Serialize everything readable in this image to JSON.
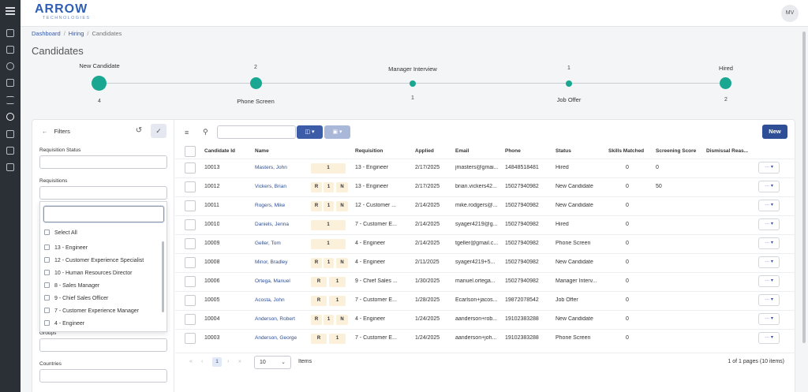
{
  "header": {
    "logo_main": "ARROW",
    "logo_sub": "TECHNOLOGIES",
    "avatar": "MV"
  },
  "breadcrumb": {
    "home": "Dashboard",
    "section": "Hiring",
    "current": "Candidates"
  },
  "page_title": "Candidates",
  "pipeline": {
    "stages": [
      {
        "label": "New Candidate",
        "count": "4"
      },
      {
        "label": "Phone Screen",
        "count": "2"
      },
      {
        "label": "Manager Interview",
        "count": "1"
      },
      {
        "label": "Job Offer",
        "count": "1"
      },
      {
        "label": "Hired",
        "count": "2"
      }
    ]
  },
  "filters": {
    "title": "Filters",
    "requisition_status_label": "Requisition Status",
    "requisitions_label": "Requisitions",
    "groups_label": "Groups",
    "countries_label": "Countries",
    "dropdown_items": [
      "Select All",
      "13 - Engineer",
      "12 - Customer Experience Specialist",
      "10 - Human Resources Director",
      "8 - Sales Manager",
      "9 - Chief Sales Officer",
      "7 - Customer Experience Manager",
      "4 - Engineer"
    ]
  },
  "toolbar": {
    "new_label": "New"
  },
  "table": {
    "columns": [
      "Candidate Id",
      "Name",
      "Requisition",
      "Applied",
      "Email",
      "Phone",
      "Status",
      "Skills Matched",
      "Screening Score",
      "Dismissal Reas..."
    ],
    "rows": [
      {
        "id": "10013",
        "name": "Masters, John",
        "badges": [
          "1"
        ],
        "req": "13 - Engineer",
        "applied": "2/17/2025",
        "email": "jmasters@gmai...",
        "phone": "14848518481",
        "status": "Hired",
        "skills": "0",
        "score": "0"
      },
      {
        "id": "10012",
        "name": "Vickers, Brian",
        "badges": [
          "R",
          "1",
          "N"
        ],
        "req": "13 - Engineer",
        "applied": "2/17/2025",
        "email": "brian.vickers42...",
        "phone": "15027940982",
        "status": "New Candidate",
        "skills": "0",
        "score": "50"
      },
      {
        "id": "10011",
        "name": "Rogers, Mike",
        "badges": [
          "R",
          "1",
          "N"
        ],
        "req": "12 - Customer ...",
        "applied": "2/14/2025",
        "email": "mike.rodgers@...",
        "phone": "15027940982",
        "status": "New Candidate",
        "skills": "0",
        "score": ""
      },
      {
        "id": "10010",
        "name": "Daniels, Jenna",
        "badges": [
          "1"
        ],
        "req": "7 - Customer E...",
        "applied": "2/14/2025",
        "email": "syager4219@g...",
        "phone": "15027940982",
        "status": "Hired",
        "skills": "0",
        "score": ""
      },
      {
        "id": "10009",
        "name": "Geller, Tom",
        "badges": [
          "1"
        ],
        "req": "4 - Engineer",
        "applied": "2/14/2025",
        "email": "tgeller@gmail.c...",
        "phone": "15027940982",
        "status": "Phone Screen",
        "skills": "0",
        "score": ""
      },
      {
        "id": "10008",
        "name": "Minor, Bradley",
        "badges": [
          "R",
          "1",
          "N"
        ],
        "req": "4 - Engineer",
        "applied": "2/11/2025",
        "email": "syager4219+5...",
        "phone": "15027940982",
        "status": "New Candidate",
        "skills": "0",
        "score": ""
      },
      {
        "id": "10006",
        "name": "Ortega, Manuel",
        "badges": [
          "R",
          "1"
        ],
        "req": "9 - Chief Sales ...",
        "applied": "1/30/2025",
        "email": "manuel.ortega...",
        "phone": "15027940982",
        "status": "Manager Interv...",
        "skills": "0",
        "score": ""
      },
      {
        "id": "10005",
        "name": "Acosta, John",
        "badges": [
          "R",
          "1"
        ],
        "req": "7 - Customer E...",
        "applied": "1/28/2025",
        "email": "Ecarlson+jacos...",
        "phone": "19872078542",
        "status": "Job Offer",
        "skills": "0",
        "score": ""
      },
      {
        "id": "10004",
        "name": "Anderson, Robert",
        "badges": [
          "R",
          "1",
          "N"
        ],
        "req": "4 - Engineer",
        "applied": "1/24/2025",
        "email": "aanderson+rob...",
        "phone": "19102383288",
        "status": "New Candidate",
        "skills": "0",
        "score": ""
      },
      {
        "id": "10003",
        "name": "Anderson, George",
        "badges": [
          "R",
          "1"
        ],
        "req": "7 - Customer E...",
        "applied": "1/24/2025",
        "email": "aanderson+joh...",
        "phone": "19102383288",
        "status": "Phone Screen",
        "skills": "0",
        "score": ""
      }
    ],
    "action_label": "···  ▾"
  },
  "pager": {
    "current_page": "1",
    "page_size": "10",
    "items_label": "Items",
    "summary": "1 of 1 pages (10 items)"
  },
  "colors": {
    "accent": "#2e4f96",
    "stage": "#1aa792",
    "badge_bg": "#fbf0d9"
  }
}
